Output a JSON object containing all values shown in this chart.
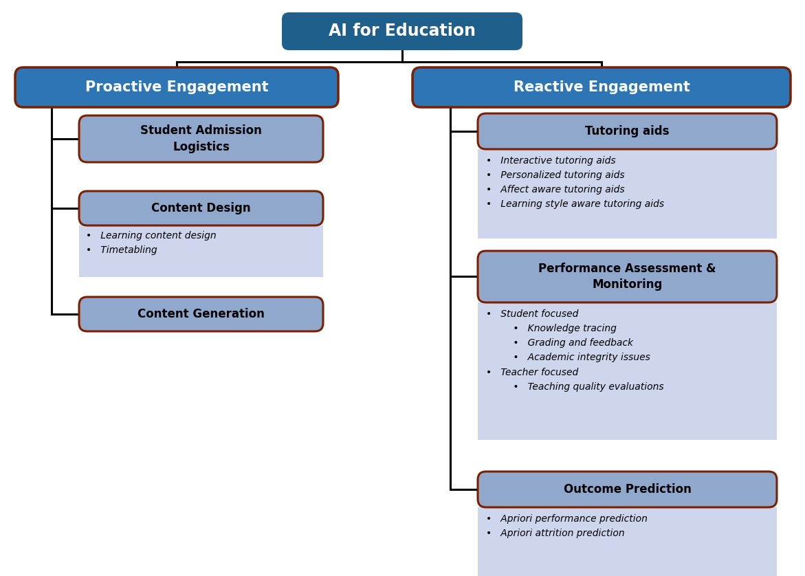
{
  "title": "AI for Education",
  "title_bg": "#1f5f8b",
  "title_text_color": "#ffffff",
  "left_header": "Proactive Engagement",
  "right_header": "Reactive Engagement",
  "header_bg": "#2e75b6",
  "header_text_color": "#ffffff",
  "subbox_bg": "#8fa8cc",
  "subbox_border": "#7a2000",
  "detail_bg": "#cdd6ec",
  "detail_text_color": "#000000",
  "left_items": [
    {
      "label": "Student Admission\nLogistics",
      "details": []
    },
    {
      "label": "Content Design",
      "details": [
        "•   Learning content design",
        "•   Timetabling"
      ]
    },
    {
      "label": "Content Generation",
      "details": []
    }
  ],
  "right_items": [
    {
      "label": "Tutoring aids",
      "details": [
        "•   Interactive tutoring aids",
        "•   Personalized tutoring aids",
        "•   Affect aware tutoring aids",
        "•   Learning style aware tutoring aids"
      ]
    },
    {
      "label": "Performance Assessment &\nMonitoring",
      "details": [
        "•   Student focused",
        "         •   Knowledge tracing",
        "         •   Grading and feedback",
        "         •   Academic integrity issues",
        "•   Teacher focused",
        "         •   Teaching quality evaluations"
      ]
    },
    {
      "label": "Outcome Prediction",
      "details": [
        "•   Apriori performance prediction",
        "•   Apriori attrition prediction"
      ]
    }
  ]
}
